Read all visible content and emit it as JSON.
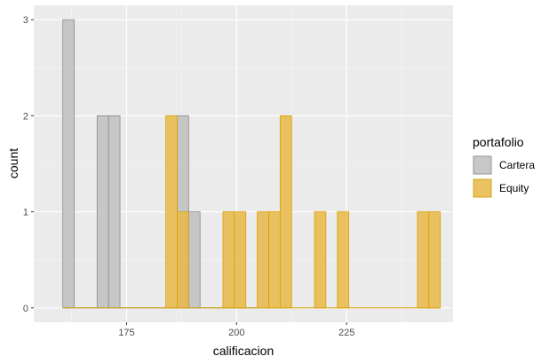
{
  "chart_data": {
    "type": "bar",
    "subtype": "histogram",
    "xlabel": "calificacion",
    "ylabel": "count",
    "bin_width": 2.6,
    "xlim": [
      153.9,
      249.2
    ],
    "ylim": [
      -0.15,
      3.15
    ],
    "x_ticks": [
      175,
      200,
      225
    ],
    "x_tick_labels": [
      "175",
      "200",
      "225"
    ],
    "y_ticks": [
      0,
      1,
      2,
      3
    ],
    "y_tick_labels": [
      "0",
      "1",
      "2",
      "3"
    ],
    "grid": true,
    "legend": {
      "title": "portafolio",
      "position": "right"
    },
    "series": [
      {
        "name": "Cartera",
        "fill": "#bfbfbf",
        "stroke": "#8c8c8c",
        "bin_starts": [
          160.5,
          163.1,
          165.7,
          168.3,
          170.9,
          173.5,
          176.1,
          178.7,
          181.3,
          183.9,
          186.5,
          189.1,
          191.7,
          194.3,
          196.9,
          199.5,
          202.1
        ],
        "counts": [
          3,
          0,
          0,
          2,
          2,
          0,
          0,
          0,
          0,
          0,
          2,
          1,
          0,
          0,
          0,
          0,
          0
        ]
      },
      {
        "name": "Equity",
        "fill": "#e9b947",
        "stroke": "#d9a100",
        "bin_starts": [
          160.5,
          163.1,
          165.7,
          168.3,
          170.9,
          173.5,
          176.1,
          178.7,
          181.3,
          183.9,
          186.5,
          189.1,
          191.7,
          194.3,
          196.9,
          199.5,
          202.1,
          204.7,
          207.3,
          209.9,
          212.5,
          215.1,
          217.7,
          220.3,
          222.9,
          225.5,
          228.1,
          230.7,
          233.3,
          235.9,
          238.5,
          241.1,
          243.7
        ],
        "counts": [
          0,
          0,
          0,
          0,
          0,
          0,
          0,
          0,
          0,
          2,
          1,
          0,
          0,
          0,
          1,
          1,
          0,
          1,
          1,
          2,
          0,
          0,
          1,
          0,
          1,
          0,
          0,
          0,
          0,
          0,
          0,
          1,
          1
        ]
      }
    ]
  }
}
